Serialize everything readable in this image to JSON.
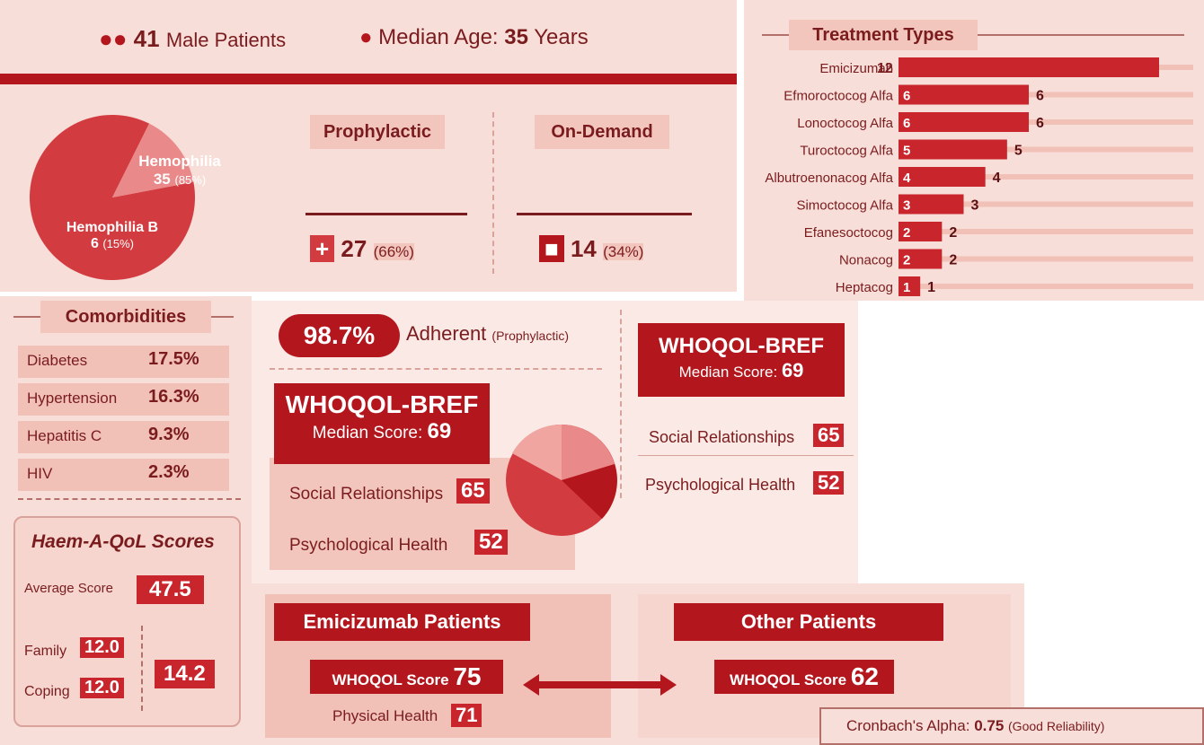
{
  "header": {
    "male_count": 41,
    "male_label": "Male Patients",
    "age_label": "Median Age:",
    "age_value": 35,
    "age_unit": "Years"
  },
  "hemophilia_pie": {
    "slices": [
      {
        "name": "Hemophilia",
        "value": 35,
        "percent_label": "(85%)",
        "color": "#d23c40"
      },
      {
        "name": "Hemophilia B",
        "value": 6,
        "percent_label": "(15%)",
        "color": "#e9898a"
      }
    ]
  },
  "regimen": [
    {
      "title": "Prophylactic",
      "value": 27,
      "percent_label": "(66%)"
    },
    {
      "title": "On-Demand",
      "value": 14,
      "percent_label": "(34%)"
    }
  ],
  "treatment_types": {
    "title": "Treatment Types",
    "color": "#c8262c",
    "items": [
      {
        "name": "Emicizumab",
        "value": 12
      },
      {
        "name": "Efmoroctocog Alfa",
        "value": 6
      },
      {
        "name": "Lonoctocog Alfa",
        "value": 6
      },
      {
        "name": "Turoctocog Alfa",
        "value": 5
      },
      {
        "name": "Albutroenonacog Alfa",
        "value": 4
      },
      {
        "name": "Simoctocog Alfa",
        "value": 3
      },
      {
        "name": "Efanesoctocog",
        "value": 2
      },
      {
        "name": "Nonacog",
        "value": 2
      },
      {
        "name": "Heptacog",
        "value": 1
      }
    ]
  },
  "comorbidities": {
    "title": "Comorbidities",
    "rows": [
      [
        "Diabetes",
        "17.5%"
      ],
      [
        "Hypertension",
        "16.3%"
      ],
      [
        "Hepatitis C",
        "9.3%"
      ],
      [
        "HIV",
        "2.3%"
      ]
    ]
  },
  "haem_a_qol": {
    "title": "Haem-A-QoL Scores",
    "average_label": "Average Score",
    "average": "47.5",
    "family_label": "Family",
    "family": "12.0",
    "coping_label": "Coping",
    "coping": "12.0",
    "combined": "14.2"
  },
  "adherence": {
    "value": "98.7%",
    "label": "Adherent",
    "note": "(Prophylactic)"
  },
  "whoqol_center": {
    "title": "WHOQOL-BREF",
    "median_label": "Median Score:",
    "median": 69,
    "domains": [
      {
        "name": "Social Relationships",
        "value": 65
      },
      {
        "name": "Psychological Health",
        "value": 52
      }
    ]
  },
  "whoqol_right": {
    "title": "WHOQOL-BREF",
    "median_label": "Median Score:",
    "median": 69,
    "domains": [
      {
        "name": "Social Relationships",
        "value": 65
      },
      {
        "name": "Psychological Health",
        "value": 52
      }
    ]
  },
  "comparison": {
    "groups": [
      {
        "title": "Emicizumab Patients",
        "score_label": "WHOQOL Score",
        "score": 75,
        "sub_label": "Physical Health",
        "sub_value": 71
      },
      {
        "title": "Other Patients",
        "score_label": "WHOQOL Score",
        "score": 62
      }
    ]
  },
  "reliability": {
    "label": "Cronbach's Alpha:",
    "value": 0.75,
    "note": "(Good Reliability)"
  }
}
